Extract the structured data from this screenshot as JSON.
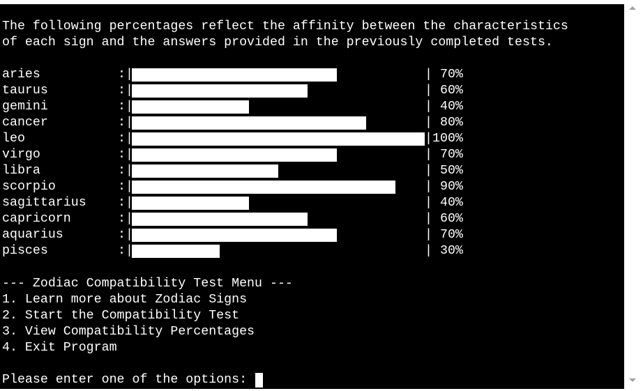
{
  "intro": {
    "line1": "The following percentages reflect the affinity between the characteristics",
    "line2": "of each sign and the answers provided in the previously completed tests."
  },
  "separator": ":|",
  "bar_end": "|",
  "signs": [
    {
      "name": "aries",
      "percent": 70,
      "label": " 70%"
    },
    {
      "name": "taurus",
      "percent": 60,
      "label": " 60%"
    },
    {
      "name": "gemini",
      "percent": 40,
      "label": " 40%"
    },
    {
      "name": "cancer",
      "percent": 80,
      "label": " 80%"
    },
    {
      "name": "leo",
      "percent": 100,
      "label": "100%"
    },
    {
      "name": "virgo",
      "percent": 70,
      "label": " 70%"
    },
    {
      "name": "libra",
      "percent": 50,
      "label": " 50%"
    },
    {
      "name": "scorpio",
      "percent": 90,
      "label": " 90%"
    },
    {
      "name": "sagittarius",
      "percent": 40,
      "label": " 40%"
    },
    {
      "name": "capricorn",
      "percent": 60,
      "label": " 60%"
    },
    {
      "name": "aquarius",
      "percent": 70,
      "label": " 70%"
    },
    {
      "name": "pisces",
      "percent": 30,
      "label": " 30%"
    }
  ],
  "menu": {
    "title": "--- Zodiac Compatibility Test Menu ---",
    "options": [
      "1. Learn more about Zodiac Signs",
      "2. Start the Compatibility Test",
      "3. View Compatibility Percentages",
      "4. Exit Program"
    ]
  },
  "prompt": "Please enter one of the options: ",
  "colors": {
    "background": "#000000",
    "text": "#ffffff",
    "bar": "#ffffff"
  }
}
